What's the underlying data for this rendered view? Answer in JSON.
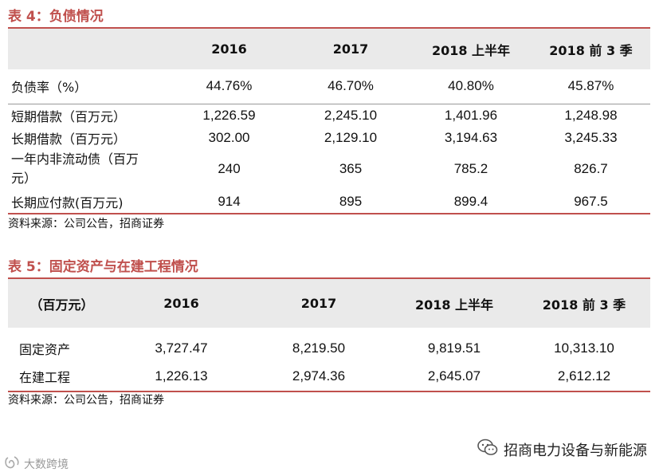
{
  "table4": {
    "title": "表 4：负债情况",
    "headers": [
      "",
      "2016",
      "2017",
      "2018 上半年",
      "2018 前 3 季"
    ],
    "rows": [
      {
        "label": "负债率（%）",
        "values": [
          "44.76%",
          "46.70%",
          "40.80%",
          "45.87%"
        ]
      },
      {
        "label": "短期借款（百万元）",
        "values": [
          "1,226.59",
          "2,245.10",
          "1,401.96",
          "1,248.98"
        ]
      },
      {
        "label": "长期借款（百万元）",
        "values": [
          "302.00",
          "2,129.10",
          "3,194.63",
          "3,245.33"
        ]
      },
      {
        "label": "一年内非流动债（百万元）",
        "values": [
          "240",
          "365",
          "785.2",
          "826.7"
        ]
      },
      {
        "label": "长期应付款(百万元)",
        "values": [
          "914",
          "895",
          "899.4",
          "967.5"
        ]
      }
    ],
    "source": "资料来源：公司公告，招商证券"
  },
  "table5": {
    "title": "表 5：固定资产与在建工程情况",
    "headers": [
      "（百万元）",
      "2016",
      "2017",
      "2018 上半年",
      "2018 前 3 季"
    ],
    "rows": [
      {
        "label": "固定资产",
        "values": [
          "3,727.47",
          "8,219.50",
          "9,819.51",
          "10,313.10"
        ]
      },
      {
        "label": "在建工程",
        "values": [
          "1,226.13",
          "2,974.36",
          "2,645.07",
          "2,612.12"
        ]
      }
    ],
    "source": "资料来源：公司公告，招商证券"
  },
  "watermarks": {
    "right": "招商电力设备与新能源",
    "left": "大数跨境"
  }
}
